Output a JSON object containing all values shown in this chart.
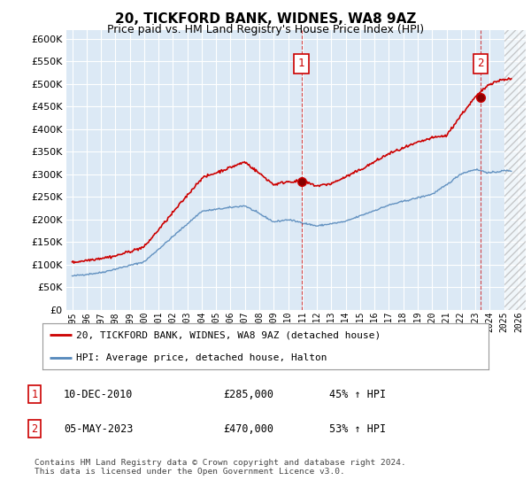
{
  "title": "20, TICKFORD BANK, WIDNES, WA8 9AZ",
  "subtitle": "Price paid vs. HM Land Registry's House Price Index (HPI)",
  "ylim": [
    0,
    620000
  ],
  "yticks": [
    0,
    50000,
    100000,
    150000,
    200000,
    250000,
    300000,
    350000,
    400000,
    450000,
    500000,
    550000,
    600000
  ],
  "xlim_left": 1994.6,
  "xlim_right": 2026.5,
  "background_color": "#dce9f5",
  "grid_color": "#ffffff",
  "legend_label_red": "20, TICKFORD BANK, WIDNES, WA8 9AZ (detached house)",
  "legend_label_blue": "HPI: Average price, detached house, Halton",
  "annotation1_label": "1",
  "annotation1_date": "10-DEC-2010",
  "annotation1_price": "£285,000",
  "annotation1_hpi": "45% ↑ HPI",
  "annotation2_label": "2",
  "annotation2_date": "05-MAY-2023",
  "annotation2_price": "£470,000",
  "annotation2_hpi": "53% ↑ HPI",
  "footer": "Contains HM Land Registry data © Crown copyright and database right 2024.\nThis data is licensed under the Open Government Licence v3.0.",
  "red_color": "#cc0000",
  "blue_color": "#5588bb",
  "vline_color": "#cc0000",
  "annotation_box_color": "#cc0000",
  "purchase1_year": 2010.92,
  "purchase1_price": 285000,
  "purchase2_year": 2023.35,
  "purchase2_price": 470000,
  "hatch_start": 2025.0,
  "title_fontsize": 11,
  "subtitle_fontsize": 9
}
